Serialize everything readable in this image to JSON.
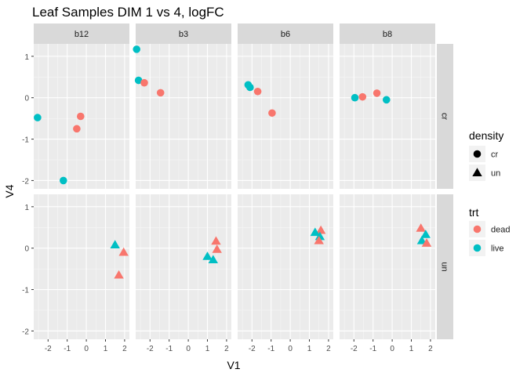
{
  "chart_data": {
    "type": "scatter",
    "title": "Leaf Samples DIM 1 vs 4, logFC",
    "xlabel": "V1",
    "ylabel": "V4",
    "xlim": [
      -2.75,
      2.25
    ],
    "ylim": [
      -2.2,
      1.3
    ],
    "x_ticks": [
      -2,
      -1,
      0,
      1,
      2
    ],
    "y_ticks": [
      -2,
      -1,
      0,
      1
    ],
    "x_tick_labels": [
      "-2",
      "-1",
      "0",
      "1",
      "2"
    ],
    "y_tick_labels": [
      "-2",
      "-1",
      "0",
      "1"
    ],
    "col_facets": [
      "b12",
      "b3",
      "b6",
      "b8"
    ],
    "row_facets": [
      "cr",
      "un"
    ],
    "grid": true,
    "legend_position": "right",
    "legends": {
      "density": {
        "title": "density",
        "items": [
          {
            "label": "cr",
            "shape": "circle"
          },
          {
            "label": "un",
            "shape": "triangle"
          }
        ]
      },
      "trt": {
        "title": "trt",
        "items": [
          {
            "label": "dead",
            "color": "#F8766D"
          },
          {
            "label": "live",
            "color": "#00BFC4"
          }
        ]
      }
    },
    "colors": {
      "dead": "#F8766D",
      "live": "#00BFC4"
    },
    "points": [
      {
        "col": "b12",
        "row": "cr",
        "trt": "dead",
        "density": "cr",
        "x": -0.3,
        "y": -0.45
      },
      {
        "col": "b12",
        "row": "cr",
        "trt": "dead",
        "density": "cr",
        "x": -0.5,
        "y": -0.75
      },
      {
        "col": "b12",
        "row": "cr",
        "trt": "live",
        "density": "cr",
        "x": -2.55,
        "y": -0.48
      },
      {
        "col": "b12",
        "row": "cr",
        "trt": "live",
        "density": "cr",
        "x": -1.2,
        "y": -2.0
      },
      {
        "col": "b12",
        "row": "un",
        "trt": "live",
        "density": "un",
        "x": 1.5,
        "y": 0.08
      },
      {
        "col": "b12",
        "row": "un",
        "trt": "dead",
        "density": "un",
        "x": 1.95,
        "y": -0.1
      },
      {
        "col": "b12",
        "row": "un",
        "trt": "dead",
        "density": "un",
        "x": 1.7,
        "y": -0.65
      },
      {
        "col": "b3",
        "row": "cr",
        "trt": "live",
        "density": "cr",
        "x": -2.7,
        "y": 1.17
      },
      {
        "col": "b3",
        "row": "cr",
        "trt": "live",
        "density": "cr",
        "x": -2.6,
        "y": 0.42
      },
      {
        "col": "b3",
        "row": "cr",
        "trt": "dead",
        "density": "cr",
        "x": -2.3,
        "y": 0.36
      },
      {
        "col": "b3",
        "row": "cr",
        "trt": "dead",
        "density": "cr",
        "x": -1.45,
        "y": 0.12
      },
      {
        "col": "b3",
        "row": "un",
        "trt": "dead",
        "density": "un",
        "x": 1.45,
        "y": 0.17
      },
      {
        "col": "b3",
        "row": "un",
        "trt": "dead",
        "density": "un",
        "x": 1.5,
        "y": -0.03
      },
      {
        "col": "b3",
        "row": "un",
        "trt": "live",
        "density": "un",
        "x": 1.0,
        "y": -0.2
      },
      {
        "col": "b3",
        "row": "un",
        "trt": "live",
        "density": "un",
        "x": 1.3,
        "y": -0.28
      },
      {
        "col": "b6",
        "row": "cr",
        "trt": "live",
        "density": "cr",
        "x": -2.2,
        "y": 0.31
      },
      {
        "col": "b6",
        "row": "cr",
        "trt": "live",
        "density": "cr",
        "x": -2.1,
        "y": 0.25
      },
      {
        "col": "b6",
        "row": "cr",
        "trt": "dead",
        "density": "cr",
        "x": -1.7,
        "y": 0.15
      },
      {
        "col": "b6",
        "row": "cr",
        "trt": "dead",
        "density": "cr",
        "x": -0.95,
        "y": -0.37
      },
      {
        "col": "b6",
        "row": "un",
        "trt": "dead",
        "density": "un",
        "x": 1.6,
        "y": 0.43
      },
      {
        "col": "b6",
        "row": "un",
        "trt": "live",
        "density": "un",
        "x": 1.3,
        "y": 0.38
      },
      {
        "col": "b6",
        "row": "un",
        "trt": "live",
        "density": "un",
        "x": 1.55,
        "y": 0.28
      },
      {
        "col": "b6",
        "row": "un",
        "trt": "dead",
        "density": "un",
        "x": 1.5,
        "y": 0.18
      },
      {
        "col": "b8",
        "row": "cr",
        "trt": "live",
        "density": "cr",
        "x": -1.95,
        "y": 0.0
      },
      {
        "col": "b8",
        "row": "cr",
        "trt": "dead",
        "density": "cr",
        "x": -1.55,
        "y": 0.02
      },
      {
        "col": "b8",
        "row": "cr",
        "trt": "dead",
        "density": "cr",
        "x": -0.8,
        "y": 0.11
      },
      {
        "col": "b8",
        "row": "cr",
        "trt": "live",
        "density": "cr",
        "x": -0.3,
        "y": -0.05
      },
      {
        "col": "b8",
        "row": "un",
        "trt": "dead",
        "density": "un",
        "x": 1.5,
        "y": 0.48
      },
      {
        "col": "b8",
        "row": "un",
        "trt": "live",
        "density": "un",
        "x": 1.75,
        "y": 0.33
      },
      {
        "col": "b8",
        "row": "un",
        "trt": "live",
        "density": "un",
        "x": 1.55,
        "y": 0.18
      },
      {
        "col": "b8",
        "row": "un",
        "trt": "dead",
        "density": "un",
        "x": 1.8,
        "y": 0.12
      }
    ]
  }
}
